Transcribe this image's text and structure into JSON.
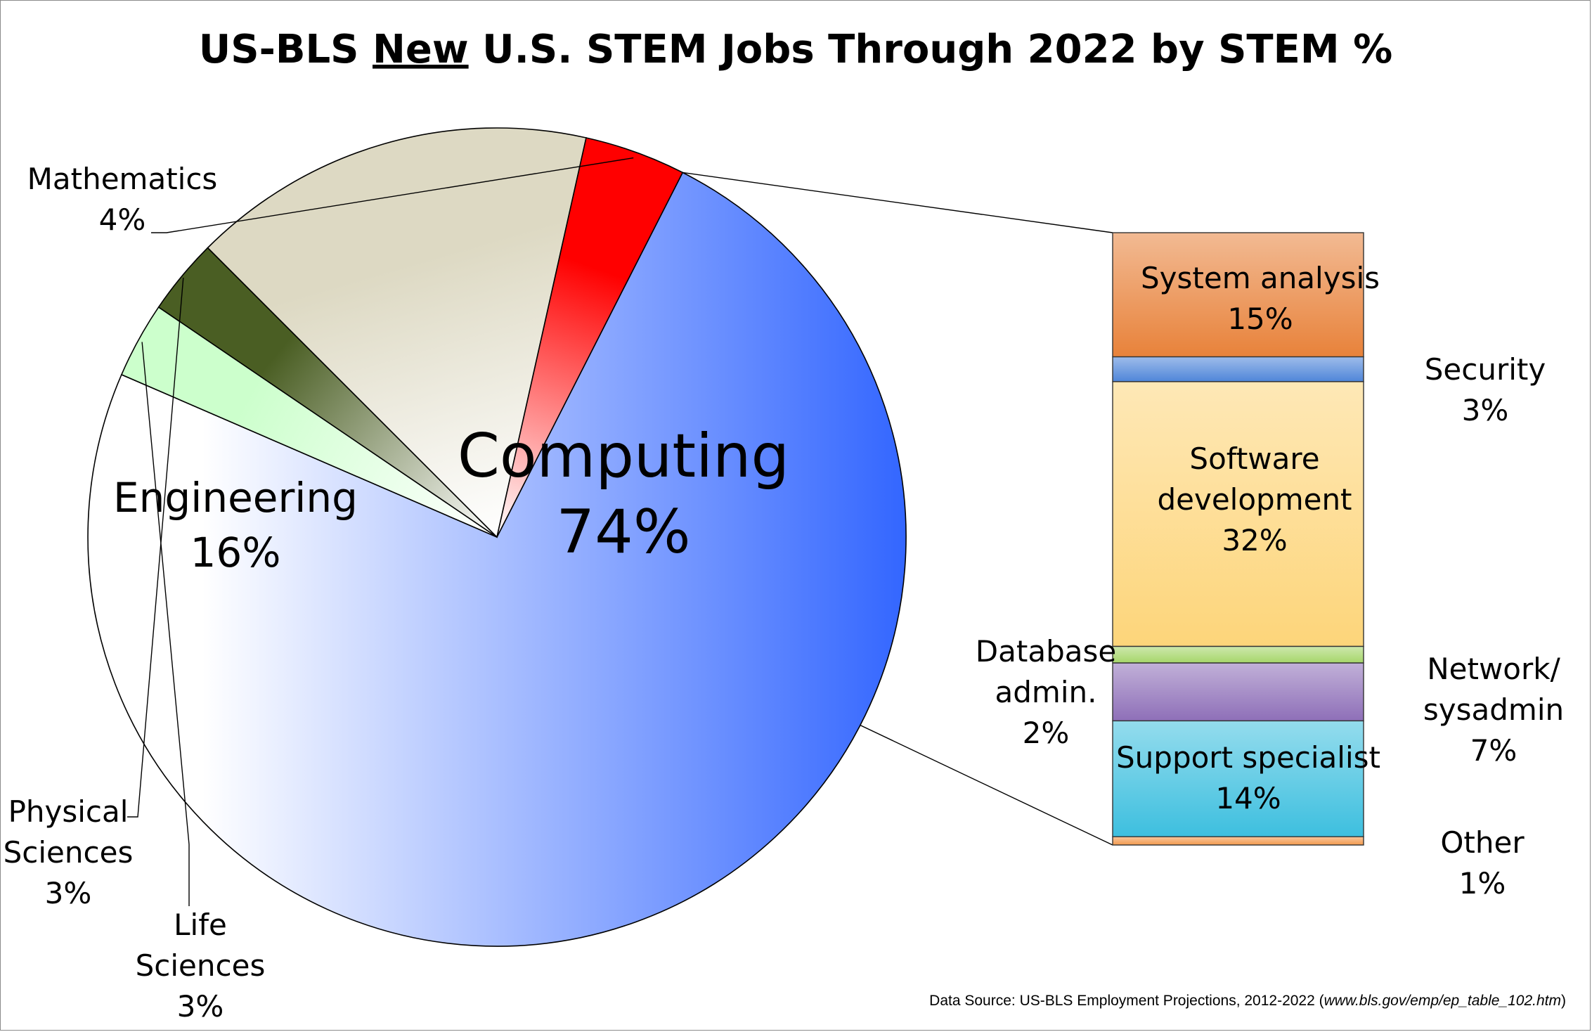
{
  "title": {
    "prefix": "US-BLS ",
    "underlined": "New",
    "suffix": " U.S. STEM Jobs Through 2022 by STEM %"
  },
  "source": {
    "prefix": "Data Source: US-BLS Employment Projections, 2012-2022 (",
    "url": "www.bls.gov/emp/ep_table_102.htm",
    "suffix": ")"
  },
  "chart_data": [
    {
      "type": "pie",
      "slices": [
        {
          "name": "Computing",
          "label_lines": [
            "Computing",
            "74%"
          ],
          "value": 74,
          "color": "#3366ff"
        },
        {
          "name": "Life Sciences",
          "label_lines": [
            "Life",
            "Sciences",
            "3%"
          ],
          "value": 3,
          "color": "#ccffcc"
        },
        {
          "name": "Physical Sciences",
          "label_lines": [
            "Physical",
            "Sciences",
            "3%"
          ],
          "value": 3,
          "color": "#4a5e23"
        },
        {
          "name": "Engineering",
          "label_lines": [
            "Engineering",
            "16%"
          ],
          "value": 16,
          "color": "#ddd9c3"
        },
        {
          "name": "Mathematics",
          "label_lines": [
            "Mathematics",
            "4%"
          ],
          "value": 4,
          "color": "#ff0000"
        }
      ]
    },
    {
      "type": "bar",
      "stacked": true,
      "breakdown_of": "Computing",
      "segments": [
        {
          "name": "System analysis",
          "label_lines": [
            "System analysis",
            "15%"
          ],
          "value": 15,
          "color": "#e8823a"
        },
        {
          "name": "Security",
          "label_lines": [
            "Security",
            "3%"
          ],
          "value": 3,
          "color": "#4f86d9"
        },
        {
          "name": "Software development",
          "label_lines": [
            "Software",
            "development",
            "32%"
          ],
          "value": 32,
          "color": "#fdd57a"
        },
        {
          "name": "Database admin.",
          "label_lines": [
            "Database",
            "admin.",
            "2%"
          ],
          "value": 2,
          "color": "#a6d66a"
        },
        {
          "name": "Network/sysadmin",
          "label_lines": [
            "Network/",
            "sysadmin",
            "7%"
          ],
          "value": 7,
          "color": "#8e6fb8"
        },
        {
          "name": "Support specialist",
          "label_lines": [
            "Support specialist",
            "14%"
          ],
          "value": 14,
          "color": "#3dbfdf"
        },
        {
          "name": "Other",
          "label_lines": [
            "Other",
            "1%"
          ],
          "value": 1,
          "color": "#f39a4e"
        }
      ]
    }
  ]
}
